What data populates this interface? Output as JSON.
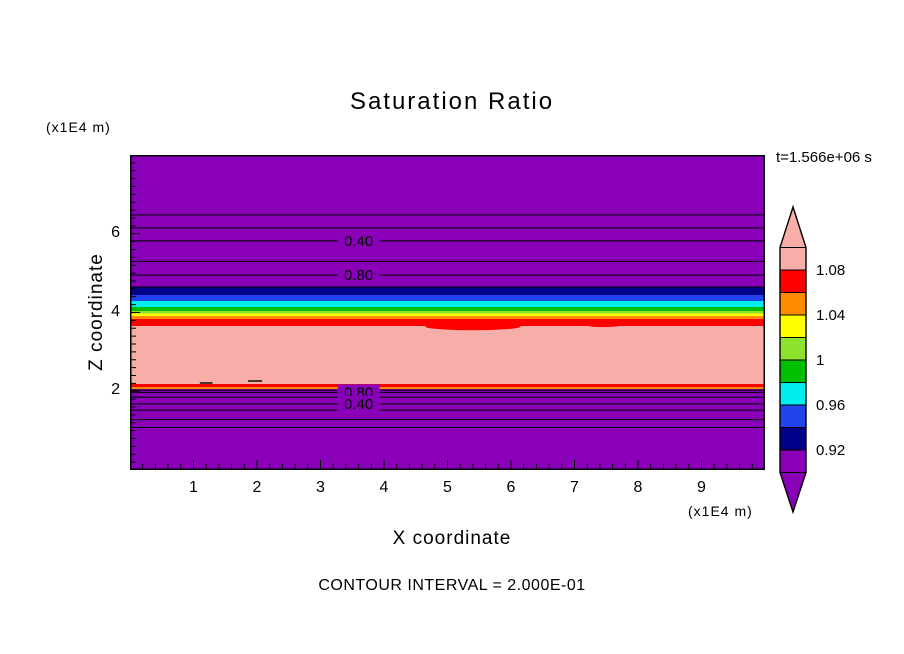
{
  "title": "Saturation Ratio",
  "annotations": {
    "time_label": "t=1.566e+06 s",
    "contour_interval": "CONTOUR INTERVAL = 2.000E-01"
  },
  "axes": {
    "x_label": "X coordinate",
    "y_label": "Z coordinate",
    "x_unit": "(x1E4 m)",
    "y_unit": "(x1E4 m)",
    "x_ticks": [
      "1",
      "2",
      "3",
      "4",
      "5",
      "6",
      "7",
      "8",
      "9"
    ],
    "y_ticks": [
      "2",
      "4",
      "6"
    ]
  },
  "chart_data": {
    "type": "heatmap",
    "title": "Saturation Ratio",
    "xlabel": "X coordinate (x1E4 m)",
    "ylabel": "Z coordinate (x1E4 m)",
    "time": "t=1.566e+06 s",
    "contour_interval": 0.2,
    "xlim": [
      0,
      10
    ],
    "ylim": [
      0,
      8
    ],
    "x_ticks": [
      1,
      2,
      3,
      4,
      5,
      6,
      7,
      8,
      9
    ],
    "y_ticks": [
      2,
      4,
      6
    ],
    "colorbar": {
      "tick_labels": [
        "1.08",
        "1.04",
        "1",
        "0.96",
        "0.92"
      ],
      "tick_values": [
        1.08,
        1.04,
        1.0,
        0.96,
        0.92
      ],
      "segment_colors": [
        "#FF0000",
        "#FF8C00",
        "#FFFF00",
        "#8CE22C",
        "#00BE00",
        "#00EEEE",
        "#2244EE",
        "#000088"
      ],
      "over_color": "#F7AEA9",
      "under_color": "#8A00B8"
    },
    "bands": [
      {
        "from": 0.0,
        "to": 2.057,
        "color": "#8A00B8"
      },
      {
        "from": 2.057,
        "to": 2.108,
        "color": "#FF8C00"
      },
      {
        "from": 2.108,
        "to": 2.184,
        "color": "#FF0000"
      },
      {
        "from": 2.184,
        "to": 3.657,
        "color": "#F7AEA9"
      },
      {
        "from": 3.657,
        "to": 3.835,
        "color": "#FF0000"
      },
      {
        "from": 3.835,
        "to": 3.911,
        "color": "#FF8C00"
      },
      {
        "from": 3.911,
        "to": 3.975,
        "color": "#FFFF00"
      },
      {
        "from": 3.975,
        "to": 4.038,
        "color": "#8CE22C"
      },
      {
        "from": 4.038,
        "to": 4.14,
        "color": "#00BE00"
      },
      {
        "from": 4.14,
        "to": 4.292,
        "color": "#00EEEE"
      },
      {
        "from": 4.292,
        "to": 4.445,
        "color": "#2244EE"
      },
      {
        "from": 4.445,
        "to": 4.648,
        "color": "#000088"
      },
      {
        "from": 4.648,
        "to": 8.0,
        "color": "#8A00B8"
      }
    ],
    "contour_lines": [
      {
        "z": 6.48
      },
      {
        "z": 6.15
      },
      {
        "z": 5.82,
        "label": "0.40",
        "label_x": 3.6
      },
      {
        "z": 5.3
      },
      {
        "z": 4.95,
        "label": "0.80",
        "label_x": 3.6
      },
      {
        "z": 4.648
      },
      {
        "z": 2.03
      },
      {
        "z": 1.97,
        "label": "0.80",
        "label_x": 3.6
      },
      {
        "z": 1.85
      },
      {
        "z": 1.68,
        "label": "0.40",
        "label_x": 3.6
      },
      {
        "z": 1.52
      },
      {
        "z": 1.28
      },
      {
        "z": 1.08
      }
    ],
    "features": {
      "ellipses": [
        {
          "x": 5.4,
          "z": 3.64,
          "rx": 0.75,
          "rz": 0.09,
          "color": "#FF0000"
        },
        {
          "x": 7.45,
          "z": 3.7,
          "rx": 0.32,
          "rz": 0.07,
          "color": "#FF0000"
        }
      ],
      "dashes": [
        {
          "x1": 1.1,
          "x2": 1.3,
          "z": 2.21
        },
        {
          "x1": 1.86,
          "x2": 2.08,
          "z": 2.26
        }
      ]
    }
  }
}
